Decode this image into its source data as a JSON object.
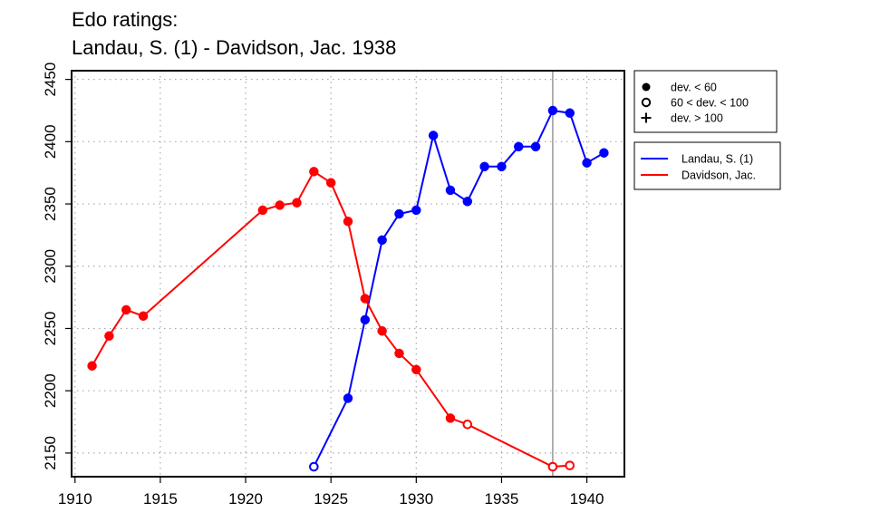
{
  "chart_data": {
    "type": "line",
    "title": "Edo ratings:",
    "subtitle": "Landau, S. (1) - Davidson, Jac. 1938",
    "xlabel": "",
    "ylabel": "",
    "xlim": [
      1909.8,
      1942.2
    ],
    "ylim": [
      2131,
      2457
    ],
    "x_ticks": [
      1910,
      1915,
      1920,
      1925,
      1930,
      1935,
      1940
    ],
    "y_ticks": [
      2150,
      2200,
      2250,
      2300,
      2350,
      2400,
      2450
    ],
    "grid": true,
    "vertical_line_x": 1938,
    "marker_legend": [
      {
        "label": "dev. < 60",
        "marker": "filled-circle"
      },
      {
        "label": "60 < dev. < 100",
        "marker": "open-circle"
      },
      {
        "label": "dev. > 100",
        "marker": "plus"
      }
    ],
    "series": [
      {
        "name": "Landau, S. (1)",
        "color": "#0000ff",
        "x": [
          1924,
          1926,
          1927,
          1928,
          1929,
          1930,
          1931,
          1932,
          1933,
          1934,
          1935,
          1936,
          1937,
          1938,
          1939,
          1940,
          1941
        ],
        "values": [
          2139,
          2194,
          2257,
          2321,
          2342,
          2345,
          2405,
          2361,
          2352,
          2380,
          2380,
          2396,
          2396,
          2425,
          2423,
          2383,
          2391
        ],
        "markers": [
          "open",
          "filled",
          "filled",
          "filled",
          "filled",
          "filled",
          "filled",
          "filled",
          "filled",
          "filled",
          "filled",
          "filled",
          "filled",
          "filled",
          "filled",
          "filled",
          "filled"
        ]
      },
      {
        "name": "Davidson, Jac.",
        "color": "#ff0000",
        "x": [
          1911,
          1912,
          1913,
          1914,
          1921,
          1922,
          1923,
          1924,
          1925,
          1926,
          1927,
          1928,
          1929,
          1930,
          1932,
          1933,
          1938,
          1939
        ],
        "values": [
          2220,
          2244,
          2265,
          2260,
          2345,
          2349,
          2351,
          2376,
          2367,
          2336,
          2274,
          2248,
          2230,
          2217,
          2178,
          2173,
          2139,
          2140
        ],
        "markers": [
          "filled",
          "filled",
          "filled",
          "filled",
          "filled",
          "filled",
          "filled",
          "filled",
          "filled",
          "filled",
          "filled",
          "filled",
          "filled",
          "filled",
          "filled",
          "open",
          "open",
          "open"
        ]
      }
    ]
  }
}
